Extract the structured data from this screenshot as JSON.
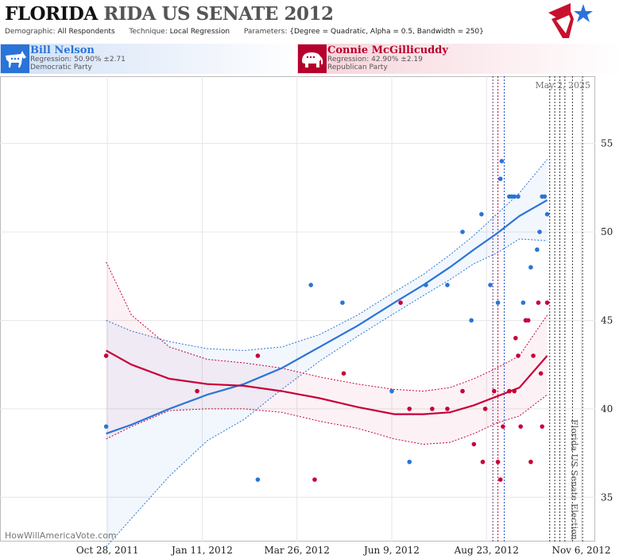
{
  "header": {
    "title_state": "FLORIDA",
    "title_rest": "RIDA US SENATE 2012",
    "demographic_label": "Demographic:",
    "demographic_value": "All Respondents",
    "technique_label": "Technique:",
    "technique_value": "Local Regression",
    "parameters_label": "Parameters:",
    "parameters_value": "{Degree = Quadratic, Alpha = 0.5, Bandwidth = 250}"
  },
  "candidates": [
    {
      "name": "Bill Nelson",
      "regression": "Regression: 50.90% ±2.71",
      "party": "Democratic Party",
      "icon": "donkey-icon",
      "color": "#2a74d8"
    },
    {
      "name": "Connie McGillicuddy",
      "regression": "Regression: 42.90% ±2.19",
      "party": "Republican Party",
      "icon": "elephant-icon",
      "color": "#c8003a"
    }
  ],
  "watermark": "HowWillAmericaVote.com",
  "current_date_label": "May 2, 2025",
  "election_label": "Florida US Senate Election",
  "chart_data": {
    "type": "scatter",
    "x_axis": {
      "ticks": [
        "Oct 28, 2011",
        "Jan 11, 2012",
        "Mar 26, 2012",
        "Jun 9, 2012",
        "Aug 23, 2012",
        "Nov 6, 2012"
      ],
      "tick_days": [
        0,
        75,
        150,
        225,
        300,
        375
      ],
      "range_days": [
        -85,
        386
      ],
      "origin_date": "Oct 28, 2011"
    },
    "y_axis": {
      "ticks": [
        35,
        40,
        45,
        50,
        55
      ],
      "range": [
        32.5,
        58.8
      ],
      "side": "right"
    },
    "grid": true,
    "vertical_markers": [
      {
        "day": 305,
        "color": "#6a2a88"
      },
      {
        "day": 309,
        "color": "#c8003a"
      },
      {
        "day": 314,
        "color": "#2a4fc8"
      },
      {
        "day": 350,
        "color": "#333333"
      },
      {
        "day": 354,
        "color": "#333333"
      },
      {
        "day": 358,
        "color": "#333333"
      },
      {
        "day": 362,
        "color": "#333333"
      },
      {
        "day": 368,
        "color": "#333333"
      },
      {
        "day": 376,
        "color": "#333333"
      }
    ],
    "series": [
      {
        "name": "Bill Nelson",
        "color": "#2a74d8",
        "points": [
          [
            -1,
            39
          ],
          [
            119,
            36
          ],
          [
            161,
            47
          ],
          [
            186,
            46
          ],
          [
            225,
            41
          ],
          [
            239,
            37
          ],
          [
            252,
            47
          ],
          [
            269,
            47
          ],
          [
            281,
            50
          ],
          [
            288,
            45
          ],
          [
            296,
            51
          ],
          [
            303,
            47
          ],
          [
            309,
            46
          ],
          [
            311,
            53
          ],
          [
            312,
            54
          ],
          [
            318,
            52
          ],
          [
            320,
            52
          ],
          [
            322,
            52
          ],
          [
            325,
            52
          ],
          [
            329,
            46
          ],
          [
            331,
            45
          ],
          [
            335,
            48
          ],
          [
            340,
            49
          ],
          [
            342,
            50
          ],
          [
            344,
            52
          ],
          [
            346,
            52
          ],
          [
            348,
            51
          ]
        ],
        "fit": [
          [
            -1,
            38.6
          ],
          [
            19,
            39.1
          ],
          [
            49,
            40.0
          ],
          [
            79,
            40.8
          ],
          [
            108,
            41.4
          ],
          [
            138,
            42.3
          ],
          [
            168,
            43.5
          ],
          [
            198,
            44.7
          ],
          [
            227,
            46.0
          ],
          [
            250,
            47.0
          ],
          [
            271,
            48.0
          ],
          [
            290,
            49.0
          ],
          [
            308,
            49.9
          ],
          [
            326,
            50.9
          ],
          [
            348,
            51.8
          ]
        ],
        "upper": [
          [
            -1,
            45.0
          ],
          [
            19,
            44.4
          ],
          [
            49,
            43.8
          ],
          [
            79,
            43.4
          ],
          [
            108,
            43.3
          ],
          [
            138,
            43.5
          ],
          [
            168,
            44.2
          ],
          [
            198,
            45.3
          ],
          [
            227,
            46.6
          ],
          [
            250,
            47.6
          ],
          [
            271,
            48.7
          ],
          [
            290,
            49.8
          ],
          [
            308,
            51.0
          ],
          [
            326,
            52.2
          ],
          [
            348,
            54.1
          ]
        ],
        "lower": [
          [
            -1,
            32.2
          ],
          [
            19,
            33.8
          ],
          [
            49,
            36.2
          ],
          [
            79,
            38.2
          ],
          [
            108,
            39.4
          ],
          [
            138,
            41.1
          ],
          [
            168,
            42.7
          ],
          [
            198,
            44.1
          ],
          [
            227,
            45.4
          ],
          [
            250,
            46.4
          ],
          [
            271,
            47.3
          ],
          [
            290,
            48.2
          ],
          [
            308,
            48.8
          ],
          [
            326,
            49.6
          ],
          [
            348,
            49.5
          ]
        ]
      },
      {
        "name": "Connie McGillicuddy",
        "color": "#c8003a",
        "points": [
          [
            -1,
            43
          ],
          [
            71,
            41
          ],
          [
            119,
            43
          ],
          [
            164,
            36
          ],
          [
            187,
            42
          ],
          [
            232,
            46
          ],
          [
            239,
            40
          ],
          [
            257,
            40
          ],
          [
            269,
            40
          ],
          [
            281,
            41
          ],
          [
            290,
            38
          ],
          [
            297,
            37
          ],
          [
            299,
            40
          ],
          [
            306,
            41
          ],
          [
            309,
            37
          ],
          [
            311,
            36
          ],
          [
            313,
            39
          ],
          [
            318,
            41
          ],
          [
            322,
            41
          ],
          [
            323,
            44
          ],
          [
            325,
            43
          ],
          [
            327,
            39
          ],
          [
            331,
            45
          ],
          [
            333,
            45
          ],
          [
            335,
            37
          ],
          [
            337,
            43
          ],
          [
            341,
            46
          ],
          [
            343,
            42
          ],
          [
            344,
            39
          ],
          [
            348,
            46
          ]
        ],
        "fit": [
          [
            -1,
            43.3
          ],
          [
            19,
            42.5
          ],
          [
            49,
            41.7
          ],
          [
            79,
            41.4
          ],
          [
            108,
            41.3
          ],
          [
            138,
            41.0
          ],
          [
            168,
            40.6
          ],
          [
            198,
            40.1
          ],
          [
            227,
            39.7
          ],
          [
            250,
            39.7
          ],
          [
            271,
            39.8
          ],
          [
            290,
            40.2
          ],
          [
            308,
            40.7
          ],
          [
            326,
            41.2
          ],
          [
            348,
            43.0
          ]
        ],
        "upper": [
          [
            -1,
            48.3
          ],
          [
            19,
            45.3
          ],
          [
            49,
            43.5
          ],
          [
            79,
            42.8
          ],
          [
            108,
            42.6
          ],
          [
            138,
            42.3
          ],
          [
            168,
            41.8
          ],
          [
            198,
            41.4
          ],
          [
            227,
            41.1
          ],
          [
            250,
            41.0
          ],
          [
            271,
            41.2
          ],
          [
            290,
            41.7
          ],
          [
            308,
            42.3
          ],
          [
            326,
            43.0
          ],
          [
            348,
            45.3
          ]
        ],
        "lower": [
          [
            -1,
            38.3
          ],
          [
            19,
            39.0
          ],
          [
            49,
            39.9
          ],
          [
            79,
            40.0
          ],
          [
            108,
            40.0
          ],
          [
            138,
            39.8
          ],
          [
            168,
            39.3
          ],
          [
            198,
            38.9
          ],
          [
            227,
            38.3
          ],
          [
            250,
            38.0
          ],
          [
            271,
            38.1
          ],
          [
            290,
            38.6
          ],
          [
            308,
            39.2
          ],
          [
            326,
            39.6
          ],
          [
            348,
            40.8
          ]
        ]
      }
    ]
  }
}
